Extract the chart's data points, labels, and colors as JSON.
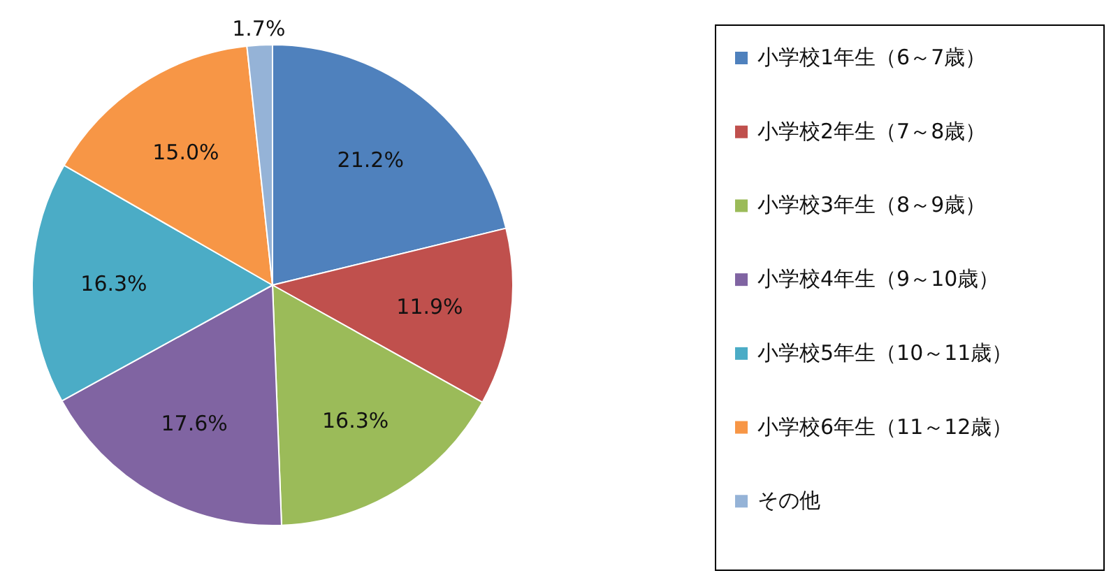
{
  "chart_data": {
    "type": "pie",
    "categories": [
      "小学校1年生（6～7歳）",
      "小学校2年生（7～8歳）",
      "小学校3年生（8～9歳）",
      "小学校4年生（9～10歳）",
      "小学校5年生（10～11歳）",
      "小学校6年生（11～12歳）",
      "その他"
    ],
    "values": [
      21.2,
      11.9,
      16.3,
      17.6,
      16.3,
      15.0,
      1.7
    ],
    "value_labels": [
      "21.2%",
      "11.9%",
      "16.3%",
      "17.6%",
      "16.3%",
      "15.0%",
      "1.7%"
    ],
    "colors": [
      "#4f81bd",
      "#c0504d",
      "#9bbb59",
      "#8064a2",
      "#4bacc6",
      "#f79646",
      "#95b3d7"
    ],
    "legend": "right"
  }
}
